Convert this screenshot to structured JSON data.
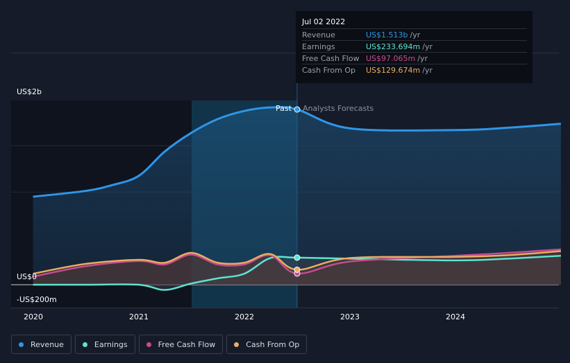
{
  "chart_data": {
    "type": "area",
    "y_axis_labels": [
      "US$2b",
      "US$0",
      "-US$200m"
    ],
    "x_tick_labels": [
      "2020",
      "2021",
      "2022",
      "2023",
      "2024"
    ],
    "ylim": [
      -200,
      2000
    ],
    "units": "US$ millions",
    "past_label": "Past",
    "forecast_label": "Analysts Forecasts",
    "past_forecast_split": "2022-07-02",
    "grid": true,
    "legend_position": "bottom",
    "series": [
      {
        "name": "Revenue",
        "color": "#2f96e8",
        "x": [
          "2019-12-31",
          "2020-06-30",
          "2020-09-30",
          "2020-12-31",
          "2021-03-31",
          "2021-06-30",
          "2021-09-30",
          "2021-12-31",
          "2022-03-31",
          "2022-07-02",
          "2022-12-31",
          "2023-12-31",
          "2024-06-30",
          "2024-12-31"
        ],
        "y": [
          760,
          810,
          860,
          940,
          1150,
          1310,
          1430,
          1500,
          1530,
          1513,
          1350,
          1335,
          1355,
          1390
        ]
      },
      {
        "name": "Earnings",
        "color": "#5ee3cf",
        "x": [
          "2019-12-31",
          "2020-06-30",
          "2020-12-31",
          "2021-03-31",
          "2021-06-30",
          "2021-09-30",
          "2021-12-31",
          "2022-03-31",
          "2022-07-02",
          "2022-12-31",
          "2023-12-31",
          "2024-06-30",
          "2024-12-31"
        ],
        "y": [
          0,
          0,
          0,
          -45,
          10,
          55,
          95,
          230,
          233.694,
          225,
          210,
          225,
          250
        ]
      },
      {
        "name": "Free Cash Flow",
        "color": "#c84b8e",
        "x": [
          "2019-12-31",
          "2020-06-30",
          "2020-12-31",
          "2021-03-31",
          "2021-06-30",
          "2021-09-30",
          "2021-12-31",
          "2022-03-31",
          "2022-07-02",
          "2022-12-31",
          "2023-12-31",
          "2024-06-30",
          "2024-12-31"
        ],
        "y": [
          70,
          160,
          205,
          175,
          260,
          175,
          175,
          255,
          97.065,
          200,
          250,
          275,
          305
        ]
      },
      {
        "name": "Cash From Op",
        "color": "#e9ad62",
        "x": [
          "2019-12-31",
          "2020-06-30",
          "2020-12-31",
          "2021-03-31",
          "2021-06-30",
          "2021-09-30",
          "2021-12-31",
          "2022-03-31",
          "2022-07-02",
          "2022-12-31",
          "2023-12-31",
          "2024-06-30",
          "2024-12-31"
        ],
        "y": [
          95,
          180,
          215,
          190,
          275,
          190,
          190,
          265,
          129.674,
          230,
          240,
          255,
          290
        ]
      }
    ]
  },
  "tooltip": {
    "date": "Jul 02 2022",
    "rows": [
      {
        "label": "Revenue",
        "value": "US$1.513b",
        "unit": "/yr",
        "color": "#2f96e8"
      },
      {
        "label": "Earnings",
        "value": "US$233.694m",
        "unit": "/yr",
        "color": "#5ee3cf"
      },
      {
        "label": "Free Cash Flow",
        "value": "US$97.065m",
        "unit": "/yr",
        "color": "#c84b8e"
      },
      {
        "label": "Cash From Op",
        "value": "US$129.674m",
        "unit": "/yr",
        "color": "#e9ad62"
      }
    ]
  },
  "legend": [
    {
      "label": "Revenue",
      "color": "#2f96e8"
    },
    {
      "label": "Earnings",
      "color": "#5ee3cf"
    },
    {
      "label": "Free Cash Flow",
      "color": "#c84b8e"
    },
    {
      "label": "Cash From Op",
      "color": "#e9ad62"
    }
  ]
}
